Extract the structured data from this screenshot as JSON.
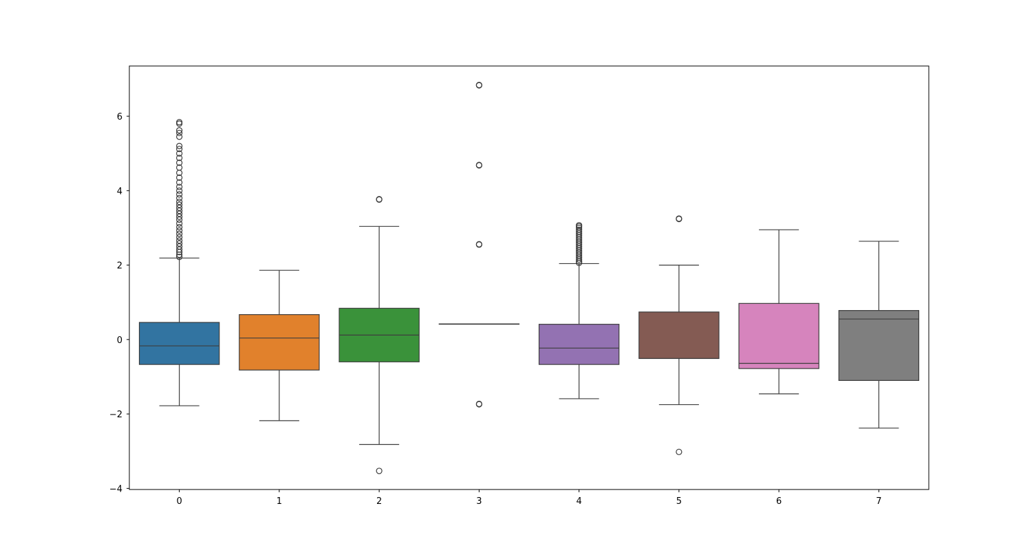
{
  "chart_data": {
    "type": "boxplot",
    "title": "",
    "xlabel": "",
    "ylabel": "",
    "ylim": [
      -4.03,
      7.35
    ],
    "y_ticks": [
      -4,
      -2,
      0,
      2,
      4,
      6
    ],
    "categories": [
      "0",
      "1",
      "2",
      "3",
      "4",
      "5",
      "6",
      "7"
    ],
    "grid": false,
    "legend": "none",
    "edge_color": "#3d3d3d",
    "boxes": [
      {
        "category": "0",
        "color": "#3274a1",
        "whisker_low": -1.78,
        "q1": -0.67,
        "median": -0.17,
        "q3": 0.46,
        "whisker_high": 2.19,
        "outliers": [
          2.22,
          2.28,
          2.35,
          2.42,
          2.5,
          2.58,
          2.66,
          2.75,
          2.84,
          2.93,
          3.02,
          3.12,
          3.22,
          3.3,
          3.38,
          3.46,
          3.54,
          3.62,
          3.7,
          3.8,
          3.9,
          4.0,
          4.1,
          4.22,
          4.35,
          4.48,
          4.62,
          4.75,
          4.88,
          5.0,
          5.12,
          5.2,
          5.45,
          5.55,
          5.62,
          5.8,
          5.84
        ]
      },
      {
        "category": "1",
        "color": "#e1812c",
        "whisker_low": -2.18,
        "q1": -0.82,
        "median": 0.04,
        "q3": 0.67,
        "whisker_high": 1.86,
        "outliers": []
      },
      {
        "category": "2",
        "color": "#3a923a",
        "whisker_low": -2.82,
        "q1": -0.6,
        "median": 0.12,
        "q3": 0.84,
        "whisker_high": 3.04,
        "outliers": [
          3.76,
          3.77,
          -3.53
        ]
      },
      {
        "category": "3",
        "color": "#c03d3e",
        "whisker_low": 0.42,
        "q1": 0.42,
        "median": 0.42,
        "q3": 0.42,
        "whisker_high": 0.42,
        "outliers": [
          6.83,
          6.84,
          4.68,
          4.69,
          2.55,
          2.56,
          -1.73,
          -1.74
        ]
      },
      {
        "category": "4",
        "color": "#9372b2",
        "whisker_low": -1.59,
        "q1": -0.67,
        "median": -0.23,
        "q3": 0.41,
        "whisker_high": 2.04,
        "outliers": [
          2.06,
          2.1,
          2.15,
          2.2,
          2.25,
          2.3,
          2.35,
          2.4,
          2.45,
          2.5,
          2.55,
          2.6,
          2.65,
          2.7,
          2.75,
          2.8,
          2.85,
          2.9,
          2.95,
          3.0,
          3.04,
          3.07
        ]
      },
      {
        "category": "5",
        "color": "#845b53",
        "whisker_low": -1.75,
        "q1": -0.51,
        "median": -0.51,
        "q3": 0.74,
        "whisker_high": 2.0,
        "outliers": [
          3.24,
          3.25,
          -3.02
        ]
      },
      {
        "category": "6",
        "color": "#d684bd",
        "whisker_low": -1.46,
        "q1": -0.78,
        "median": -0.64,
        "q3": 0.97,
        "whisker_high": 2.95,
        "outliers": []
      },
      {
        "category": "7",
        "color": "#7f7f7f",
        "whisker_low": -2.38,
        "q1": -1.1,
        "median": 0.55,
        "q3": 0.78,
        "whisker_high": 2.64,
        "outliers": []
      }
    ]
  }
}
